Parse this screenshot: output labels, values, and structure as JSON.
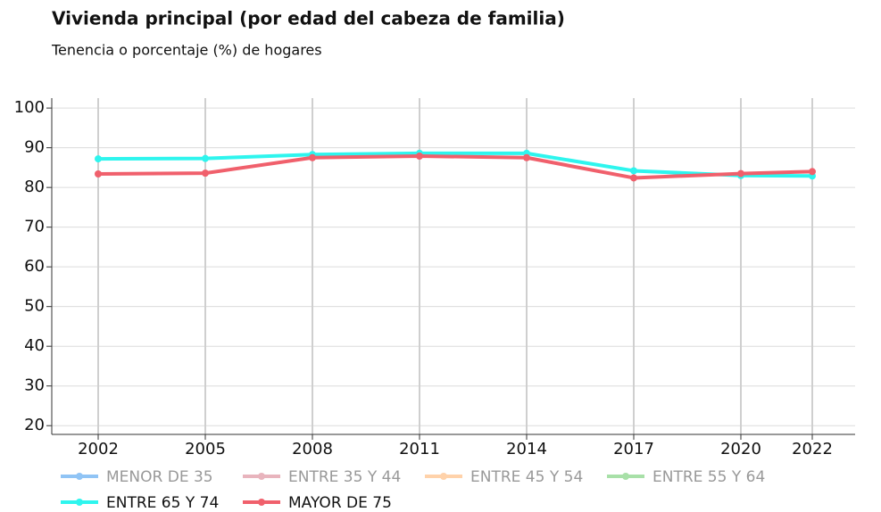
{
  "chart_data": {
    "type": "line",
    "title": "Vivienda principal (por edad del cabeza de familia)",
    "subtitle": "Tenencia o porcentaje (%) de hogares",
    "x": [
      2002,
      2005,
      2008,
      2011,
      2014,
      2017,
      2020,
      2022
    ],
    "xlim": [
      2000.7,
      2023.2
    ],
    "xticks": [
      2002,
      2005,
      2008,
      2011,
      2014,
      2017,
      2020,
      2022
    ],
    "ylim": [
      17.8,
      102.5
    ],
    "yticks": [
      20,
      30,
      40,
      50,
      60,
      70,
      80,
      90,
      100
    ],
    "grid": true,
    "legend": "bottom",
    "series": [
      {
        "name": "MENOR DE 35",
        "color": "#90c4f5",
        "visible": false,
        "values": [
          null,
          null,
          null,
          null,
          null,
          null,
          null,
          null
        ]
      },
      {
        "name": "ENTRE 35 Y 44",
        "color": "#e8b4bd",
        "visible": false,
        "values": [
          null,
          null,
          null,
          null,
          null,
          null,
          null,
          null
        ]
      },
      {
        "name": "ENTRE 45 Y 54",
        "color": "#ffd2aa",
        "visible": false,
        "values": [
          null,
          null,
          null,
          null,
          null,
          null,
          null,
          null
        ]
      },
      {
        "name": "ENTRE 55 Y 64",
        "color": "#a8e0a8",
        "visible": false,
        "values": [
          null,
          null,
          null,
          null,
          null,
          null,
          null,
          null
        ]
      },
      {
        "name": "ENTRE 65 Y 74",
        "color": "#2ef5ee",
        "visible": true,
        "values": [
          87.2,
          87.3,
          88.3,
          88.6,
          88.6,
          84.2,
          83.0,
          82.9
        ]
      },
      {
        "name": "MAYOR DE 75",
        "color": "#f0606c",
        "visible": true,
        "values": [
          83.4,
          83.6,
          87.5,
          87.9,
          87.5,
          82.4,
          83.5,
          84.0
        ]
      }
    ]
  }
}
